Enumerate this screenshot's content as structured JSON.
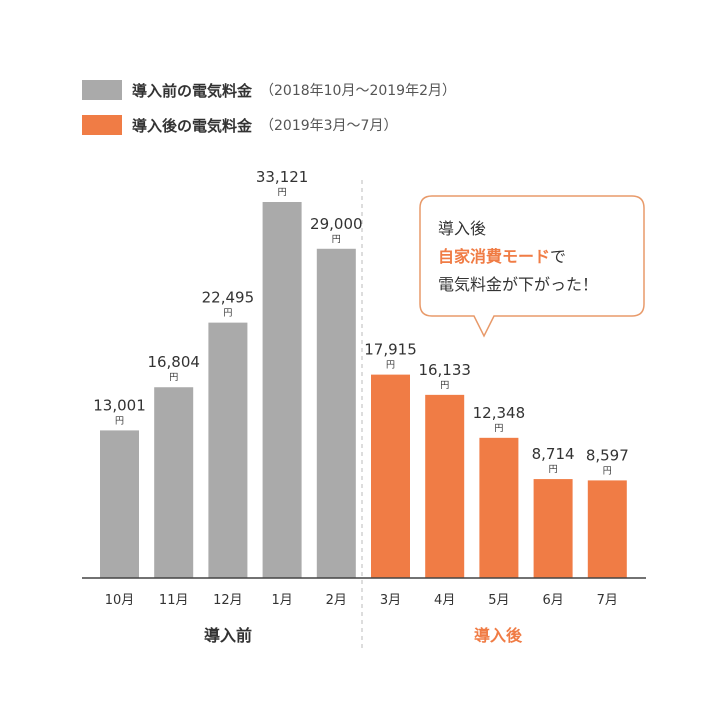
{
  "legend": {
    "before_label": "導入前の電気料金",
    "before_range": "（2018年10月〜2019年2月）",
    "after_label": "導入後の電気料金",
    "after_range": "（2019年3月〜7月）"
  },
  "callout": {
    "line1": "導入後",
    "highlight": "自家消費モード",
    "line2_suffix": "で",
    "line3": "電気料金が下がった！"
  },
  "colors": {
    "before": "#aaaaaa",
    "after": "#f07c45",
    "axis": "#444444",
    "divider": "#bbbbbb",
    "text": "#333333"
  },
  "chart_data": {
    "type": "bar",
    "title": "",
    "xlabel": "",
    "ylabel": "",
    "ylim": [
      0,
      33121
    ],
    "unit": "円",
    "categories": [
      "10月",
      "11月",
      "12月",
      "1月",
      "2月",
      "3月",
      "4月",
      "5月",
      "6月",
      "7月"
    ],
    "series": [
      {
        "name": "導入前の電気料金",
        "values": [
          13001,
          16804,
          22495,
          33121,
          29000,
          null,
          null,
          null,
          null,
          null
        ]
      },
      {
        "name": "導入後の電気料金",
        "values": [
          null,
          null,
          null,
          null,
          null,
          17915,
          16133,
          12348,
          8714,
          8597
        ]
      }
    ],
    "value_labels": [
      "13,001",
      "16,804",
      "22,495",
      "33,121",
      "29,000",
      "17,915",
      "16,133",
      "12,348",
      "8,714",
      "8,597"
    ],
    "groups": [
      {
        "label": "導入前",
        "series": 0
      },
      {
        "label": "導入後",
        "series": 1
      }
    ]
  }
}
